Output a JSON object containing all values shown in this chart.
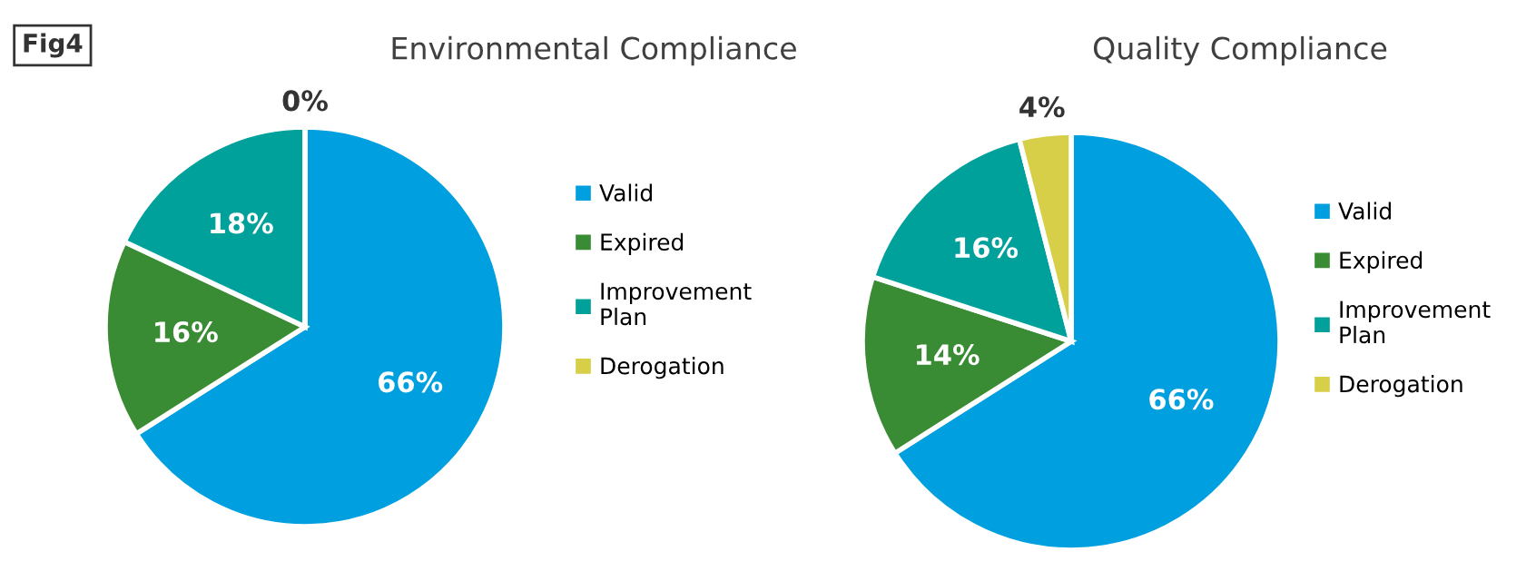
{
  "chart_data": [
    {
      "type": "pie",
      "title": "Environmental Compliance",
      "annotations": [
        "Fig4"
      ],
      "categories": [
        "Valid",
        "Expired",
        "Improvement Plan",
        "Derogation"
      ],
      "values": [
        66,
        16,
        18,
        0
      ],
      "value_labels": [
        "66%",
        "16%",
        "18%",
        "0%"
      ],
      "colors": [
        "#009fdf",
        "#3a8c34",
        "#00a09b",
        "#d8cf48"
      ],
      "legend": "right"
    },
    {
      "type": "pie",
      "title": "Quality Compliance",
      "categories": [
        "Valid",
        "Expired",
        "Improvement Plan",
        "Derogation"
      ],
      "values": [
        66,
        14,
        16,
        4
      ],
      "value_labels": [
        "66%",
        "14%",
        "16%",
        "4%"
      ],
      "colors": [
        "#009fdf",
        "#3a8c34",
        "#00a09b",
        "#d8cf48"
      ],
      "legend": "right"
    }
  ]
}
